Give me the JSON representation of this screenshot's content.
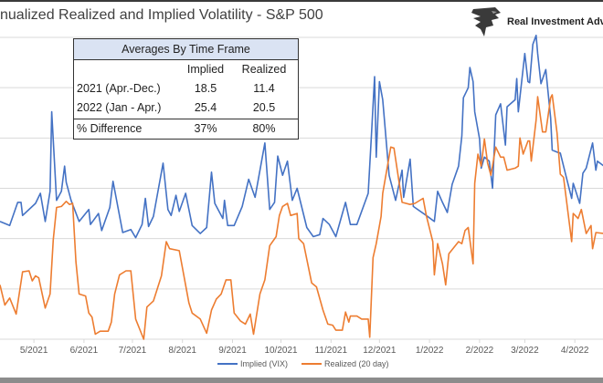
{
  "header": {
    "title": "nualized Realized and Implied Volatility - S&P 500",
    "logo_text": "Real Investment Advice"
  },
  "table": {
    "title": "Averages By Time Frame",
    "columns": [
      "",
      "Implied",
      "Realized"
    ],
    "rows": [
      [
        "2021 (Apr.-Dec.)",
        "18.5",
        "11.4"
      ],
      [
        "2022 (Jan - Apr.)",
        "25.4",
        "20.5"
      ]
    ],
    "footer": [
      "% Difference",
      "37%",
      "80%"
    ]
  },
  "chart_data": {
    "type": "line",
    "title": "",
    "xlabel": "",
    "ylabel": "",
    "xlim": [
      "2021-04-10",
      "2022-04-19"
    ],
    "ylim": [
      5,
      35
    ],
    "ygrid": [
      5,
      10,
      15,
      20,
      25,
      30,
      35
    ],
    "grid": true,
    "legend_position": "bottom",
    "x_ticks": [
      {
        "date": "2021-05-01",
        "label": "5/2021"
      },
      {
        "date": "2021-06-01",
        "label": "6/2021"
      },
      {
        "date": "2021-07-01",
        "label": "7/2021"
      },
      {
        "date": "2021-08-01",
        "label": "8/2021"
      },
      {
        "date": "2021-09-01",
        "label": "9/2021"
      },
      {
        "date": "2021-10-01",
        "label": "10/2021"
      },
      {
        "date": "2021-11-01",
        "label": "11/2021"
      },
      {
        "date": "2021-12-01",
        "label": "12/2021"
      },
      {
        "date": "2022-01-01",
        "label": "1/2022"
      },
      {
        "date": "2022-02-01",
        "label": "2/2022"
      },
      {
        "date": "2022-03-01",
        "label": "3/2022"
      },
      {
        "date": "2022-04-01",
        "label": "4/2022"
      }
    ],
    "series": [
      {
        "name": "Implied (VIX)",
        "color": "#4472c4",
        "points": [
          [
            "2021-04-10",
            16.7
          ],
          [
            "2021-04-16",
            16.3
          ],
          [
            "2021-04-21",
            18.6
          ],
          [
            "2021-04-23",
            18.6
          ],
          [
            "2021-04-24",
            17.3
          ],
          [
            "2021-05-02",
            18.5
          ],
          [
            "2021-05-05",
            19.5
          ],
          [
            "2021-05-08",
            16.7
          ],
          [
            "2021-05-11",
            19.7
          ],
          [
            "2021-05-12",
            27.6
          ],
          [
            "2021-05-15",
            18.8
          ],
          [
            "2021-05-18",
            19.7
          ],
          [
            "2021-05-20",
            22.2
          ],
          [
            "2021-05-21",
            20.6
          ],
          [
            "2021-05-24",
            18.8
          ],
          [
            "2021-05-29",
            16.7
          ],
          [
            "2021-06-04",
            17.9
          ],
          [
            "2021-06-05",
            16.4
          ],
          [
            "2021-06-10",
            17.5
          ],
          [
            "2021-06-12",
            15.8
          ],
          [
            "2021-06-17",
            18.1
          ],
          [
            "2021-06-19",
            20.7
          ],
          [
            "2021-06-25",
            15.6
          ],
          [
            "2021-06-30",
            15.9
          ],
          [
            "2021-07-03",
            15.1
          ],
          [
            "2021-07-07",
            16.4
          ],
          [
            "2021-07-09",
            19.0
          ],
          [
            "2021-07-11",
            16.2
          ],
          [
            "2021-07-14",
            17.2
          ],
          [
            "2021-07-20",
            22.5
          ],
          [
            "2021-07-23",
            17.9
          ],
          [
            "2021-07-25",
            17.3
          ],
          [
            "2021-07-28",
            19.3
          ],
          [
            "2021-07-30",
            17.7
          ],
          [
            "2021-08-03",
            19.5
          ],
          [
            "2021-08-07",
            16.3
          ],
          [
            "2021-08-12",
            15.5
          ],
          [
            "2021-08-16",
            16.1
          ],
          [
            "2021-08-19",
            21.6
          ],
          [
            "2021-08-21",
            18.5
          ],
          [
            "2021-08-26",
            17.0
          ],
          [
            "2021-08-27",
            18.8
          ],
          [
            "2021-08-29",
            16.3
          ],
          [
            "2021-09-02",
            16.3
          ],
          [
            "2021-09-07",
            18.2
          ],
          [
            "2021-09-11",
            20.9
          ],
          [
            "2021-09-15",
            19.1
          ],
          [
            "2021-09-21",
            24.5
          ],
          [
            "2021-09-24",
            17.9
          ],
          [
            "2021-09-27",
            18.6
          ],
          [
            "2021-09-29",
            23.2
          ],
          [
            "2021-10-02",
            21.3
          ],
          [
            "2021-10-05",
            22.7
          ],
          [
            "2021-10-08",
            18.8
          ],
          [
            "2021-10-11",
            20.0
          ],
          [
            "2021-10-17",
            16.1
          ],
          [
            "2021-10-21",
            15.2
          ],
          [
            "2021-10-25",
            15.4
          ],
          [
            "2021-10-27",
            17.0
          ],
          [
            "2021-10-31",
            16.4
          ],
          [
            "2021-11-04",
            15.2
          ],
          [
            "2021-11-10",
            18.6
          ],
          [
            "2021-11-13",
            16.4
          ],
          [
            "2021-11-17",
            16.4
          ],
          [
            "2021-11-24",
            19.5
          ],
          [
            "2021-11-26",
            25.2
          ],
          [
            "2021-11-28",
            31.1
          ],
          [
            "2021-11-29",
            23.1
          ],
          [
            "2021-12-01",
            30.6
          ],
          [
            "2021-12-03",
            28.8
          ],
          [
            "2021-12-07",
            21.3
          ],
          [
            "2021-12-11",
            18.8
          ],
          [
            "2021-12-15",
            21.8
          ],
          [
            "2021-12-16",
            19.1
          ],
          [
            "2021-12-20",
            22.9
          ],
          [
            "2021-12-22",
            18.2
          ],
          [
            "2021-12-30",
            17.3
          ],
          [
            "2022-01-04",
            16.7
          ],
          [
            "2022-01-06",
            19.7
          ],
          [
            "2022-01-09",
            18.6
          ],
          [
            "2022-01-12",
            17.6
          ],
          [
            "2022-01-15",
            20.4
          ],
          [
            "2022-01-19",
            22.2
          ],
          [
            "2022-01-21",
            25.2
          ],
          [
            "2022-01-22",
            29.0
          ],
          [
            "2022-01-25",
            30.0
          ],
          [
            "2022-01-26",
            32.0
          ],
          [
            "2022-01-28",
            30.6
          ],
          [
            "2022-01-29",
            27.6
          ],
          [
            "2022-02-01",
            24.9
          ],
          [
            "2022-02-02",
            22.0
          ],
          [
            "2022-02-04",
            23.1
          ],
          [
            "2022-02-07",
            22.7
          ],
          [
            "2022-02-09",
            20.0
          ],
          [
            "2022-02-11",
            27.3
          ],
          [
            "2022-02-14",
            28.4
          ],
          [
            "2022-02-17",
            24.3
          ],
          [
            "2022-02-18",
            28.1
          ],
          [
            "2022-02-23",
            28.8
          ],
          [
            "2022-02-24",
            30.9
          ],
          [
            "2022-02-25",
            27.6
          ],
          [
            "2022-03-01",
            33.4
          ],
          [
            "2022-03-03",
            30.6
          ],
          [
            "2022-03-04",
            30.5
          ],
          [
            "2022-03-06",
            34.3
          ],
          [
            "2022-03-08",
            35.2
          ],
          [
            "2022-03-09",
            33.4
          ],
          [
            "2022-03-11",
            30.4
          ],
          [
            "2022-03-14",
            31.8
          ],
          [
            "2022-03-17",
            27.0
          ],
          [
            "2022-03-18",
            23.8
          ],
          [
            "2022-03-21",
            23.6
          ],
          [
            "2022-03-23",
            23.5
          ],
          [
            "2022-03-27",
            20.9
          ],
          [
            "2022-03-30",
            19.0
          ],
          [
            "2022-03-31",
            20.5
          ],
          [
            "2022-04-04",
            18.5
          ],
          [
            "2022-04-06",
            21.5
          ],
          [
            "2022-04-08",
            22.0
          ],
          [
            "2022-04-12",
            24.5
          ],
          [
            "2022-04-14",
            21.8
          ],
          [
            "2022-04-15",
            22.7
          ],
          [
            "2022-04-19",
            22.2
          ]
        ]
      },
      {
        "name": "Realized (20 day)",
        "color": "#ed7d31",
        "points": [
          [
            "2021-04-10",
            10.4
          ],
          [
            "2021-04-13",
            8.4
          ],
          [
            "2021-04-16",
            9.1
          ],
          [
            "2021-04-20",
            7.5
          ],
          [
            "2021-04-24",
            11.7
          ],
          [
            "2021-04-28",
            11.8
          ],
          [
            "2021-04-30",
            10.8
          ],
          [
            "2021-05-02",
            11.3
          ],
          [
            "2021-05-04",
            11.1
          ],
          [
            "2021-05-08",
            8.1
          ],
          [
            "2021-05-11",
            9.5
          ],
          [
            "2021-05-13",
            14.9
          ],
          [
            "2021-05-15",
            18.1
          ],
          [
            "2021-05-18",
            18.2
          ],
          [
            "2021-05-21",
            18.7
          ],
          [
            "2021-05-23",
            18.4
          ],
          [
            "2021-05-25",
            18.5
          ],
          [
            "2021-05-27",
            12.7
          ],
          [
            "2021-05-29",
            9.5
          ],
          [
            "2021-06-02",
            9.3
          ],
          [
            "2021-06-04",
            7.6
          ],
          [
            "2021-06-06",
            7.2
          ],
          [
            "2021-06-08",
            5.5
          ],
          [
            "2021-06-11",
            5.8
          ],
          [
            "2021-06-16",
            5.8
          ],
          [
            "2021-06-18",
            6.7
          ],
          [
            "2021-06-20",
            9.5
          ],
          [
            "2021-06-23",
            11.4
          ],
          [
            "2021-06-27",
            11.8
          ],
          [
            "2021-06-30",
            11.8
          ],
          [
            "2021-07-03",
            7.0
          ],
          [
            "2021-07-08",
            5.0
          ],
          [
            "2021-07-10",
            8.2
          ],
          [
            "2021-07-14",
            8.8
          ],
          [
            "2021-07-19",
            11.3
          ],
          [
            "2021-07-22",
            14.7
          ],
          [
            "2021-07-24",
            14.0
          ],
          [
            "2021-07-30",
            13.8
          ],
          [
            "2021-08-05",
            8.6
          ],
          [
            "2021-08-07",
            7.6
          ],
          [
            "2021-08-12",
            7.0
          ],
          [
            "2021-08-16",
            5.6
          ],
          [
            "2021-08-19",
            7.9
          ],
          [
            "2021-08-22",
            9.0
          ],
          [
            "2021-08-25",
            9.5
          ],
          [
            "2021-08-28",
            10.9
          ],
          [
            "2021-08-31",
            10.9
          ],
          [
            "2021-09-02",
            7.6
          ],
          [
            "2021-09-06",
            6.8
          ],
          [
            "2021-09-09",
            6.5
          ],
          [
            "2021-09-12",
            7.5
          ],
          [
            "2021-09-14",
            5.5
          ],
          [
            "2021-09-18",
            9.5
          ],
          [
            "2021-09-21",
            10.9
          ],
          [
            "2021-09-24",
            14.3
          ],
          [
            "2021-09-28",
            15.2
          ],
          [
            "2021-09-30",
            17.3
          ],
          [
            "2021-10-02",
            18.2
          ],
          [
            "2021-10-05",
            18.5
          ],
          [
            "2021-10-07",
            17.3
          ],
          [
            "2021-10-11",
            17.5
          ],
          [
            "2021-10-12",
            15.0
          ],
          [
            "2021-10-15",
            14.5
          ],
          [
            "2021-10-20",
            10.6
          ],
          [
            "2021-10-23",
            10.2
          ],
          [
            "2021-10-27",
            7.9
          ],
          [
            "2021-10-30",
            6.5
          ],
          [
            "2021-11-02",
            6.4
          ],
          [
            "2021-11-04",
            5.9
          ],
          [
            "2021-11-08",
            5.9
          ],
          [
            "2021-11-10",
            7.7
          ],
          [
            "2021-11-12",
            6.7
          ],
          [
            "2021-11-13",
            7.3
          ],
          [
            "2021-11-17",
            7.3
          ],
          [
            "2021-11-20",
            7.0
          ],
          [
            "2021-11-24",
            7.0
          ],
          [
            "2021-11-25",
            5.2
          ],
          [
            "2021-11-27",
            13.1
          ],
          [
            "2021-11-29",
            14.5
          ],
          [
            "2021-12-02",
            17.2
          ],
          [
            "2021-12-03",
            19.5
          ],
          [
            "2021-12-08",
            24.1
          ],
          [
            "2021-12-10",
            24.0
          ],
          [
            "2021-12-13",
            20.8
          ],
          [
            "2021-12-15",
            18.6
          ],
          [
            "2021-12-20",
            18.4
          ],
          [
            "2021-12-23",
            18.5
          ],
          [
            "2021-12-28",
            19.0
          ],
          [
            "2021-12-30",
            17.3
          ],
          [
            "2022-01-03",
            14.7
          ],
          [
            "2022-01-04",
            11.4
          ],
          [
            "2022-01-06",
            14.5
          ],
          [
            "2022-01-09",
            12.5
          ],
          [
            "2022-01-11",
            10.4
          ],
          [
            "2022-01-13",
            13.5
          ],
          [
            "2022-01-19",
            14.7
          ],
          [
            "2022-01-21",
            14.5
          ],
          [
            "2022-01-23",
            15.8
          ],
          [
            "2022-01-25",
            16.1
          ],
          [
            "2022-01-28",
            12.5
          ],
          [
            "2022-01-29",
            20.5
          ],
          [
            "2022-01-31",
            23.4
          ],
          [
            "2022-02-02",
            22.2
          ],
          [
            "2022-02-04",
            24.9
          ],
          [
            "2022-02-06",
            22.5
          ],
          [
            "2022-02-08",
            21.3
          ],
          [
            "2022-02-11",
            24.1
          ],
          [
            "2022-02-14",
            23.1
          ],
          [
            "2022-02-16",
            23.1
          ],
          [
            "2022-02-18",
            21.8
          ],
          [
            "2022-02-23",
            22.0
          ],
          [
            "2022-02-25",
            22.2
          ],
          [
            "2022-02-26",
            25.0
          ],
          [
            "2022-02-28",
            23.4
          ],
          [
            "2022-03-03",
            24.7
          ],
          [
            "2022-03-04",
            24.7
          ],
          [
            "2022-03-05",
            22.7
          ],
          [
            "2022-03-08",
            26.8
          ],
          [
            "2022-03-09",
            29.1
          ],
          [
            "2022-03-12",
            25.6
          ],
          [
            "2022-03-14",
            25.6
          ],
          [
            "2022-03-17",
            29.0
          ],
          [
            "2022-03-18",
            29.3
          ],
          [
            "2022-03-21",
            25.5
          ],
          [
            "2022-03-23",
            21.4
          ],
          [
            "2022-03-25",
            21.1
          ],
          [
            "2022-03-28",
            17.3
          ],
          [
            "2022-03-30",
            14.7
          ],
          [
            "2022-03-31",
            17.5
          ],
          [
            "2022-04-03",
            17.0
          ],
          [
            "2022-04-05",
            17.9
          ],
          [
            "2022-04-08",
            15.5
          ],
          [
            "2022-04-11",
            16.3
          ],
          [
            "2022-04-12",
            14.0
          ],
          [
            "2022-04-14",
            15.6
          ],
          [
            "2022-04-19",
            15.5
          ]
        ]
      }
    ]
  }
}
